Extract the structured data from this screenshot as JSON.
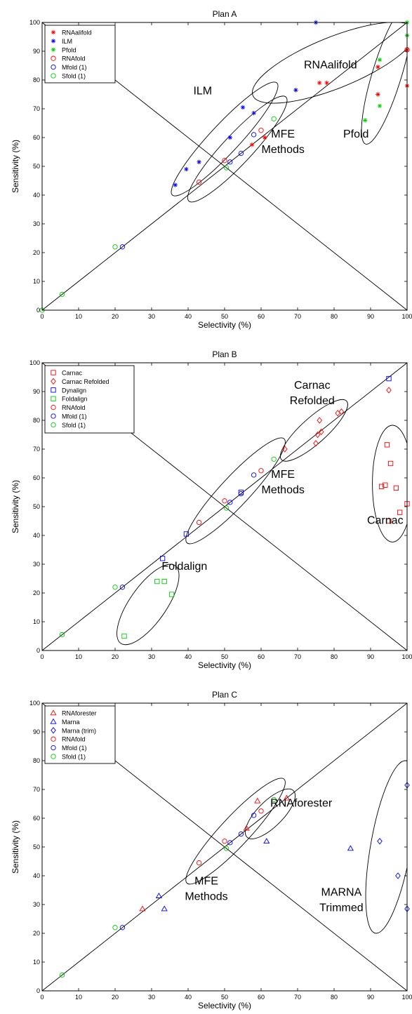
{
  "colors": {
    "red": "#ff0000",
    "blue": "#0000ff",
    "green": "#00cc00",
    "black": "#000000"
  },
  "charts": [
    {
      "type": "scatter",
      "title": "Plan A",
      "xlabel": "Selectivity (%)",
      "ylabel": "Sensitivity (%)",
      "xlim": [
        0,
        100
      ],
      "ylim": [
        0,
        100
      ],
      "ticks": [
        "0",
        "10",
        "20",
        "30",
        "40",
        "50",
        "60",
        "70",
        "80",
        "90",
        "100"
      ],
      "legend": {
        "position": "top-left",
        "entries": [
          {
            "name": "RNAalifold",
            "color": "red",
            "marker": "asterisk"
          },
          {
            "name": "ILM",
            "color": "blue",
            "marker": "asterisk"
          },
          {
            "name": "Pfold",
            "color": "green",
            "marker": "asterisk"
          },
          {
            "name": "RNAfold",
            "color": "red",
            "marker": "circle"
          },
          {
            "name": "Mfold (1)",
            "color": "blue",
            "marker": "circle"
          },
          {
            "name": "Sfold (1)",
            "color": "green",
            "marker": "circle"
          }
        ]
      },
      "series": [
        {
          "name": "RNAalifold",
          "color": "red",
          "marker": "asterisk",
          "points": [
            [
              57.5,
              57.5
            ],
            [
              61,
              60
            ],
            [
              76,
              79
            ],
            [
              78,
              79
            ],
            [
              92,
              75
            ],
            [
              92,
              84.5
            ],
            [
              100,
              78
            ],
            [
              100,
              90.5
            ]
          ]
        },
        {
          "name": "ILM",
          "color": "blue",
          "marker": "asterisk",
          "points": [
            [
              36.5,
              43.5
            ],
            [
              39.5,
              49
            ],
            [
              43,
              51.5
            ],
            [
              51.5,
              60
            ],
            [
              55,
              70.5
            ],
            [
              58,
              68.5
            ],
            [
              69.5,
              76.5
            ],
            [
              75,
              100
            ]
          ]
        },
        {
          "name": "Pfold",
          "color": "green",
          "marker": "asterisk",
          "points": [
            [
              88.5,
              66
            ],
            [
              92.5,
              71
            ],
            [
              92.5,
              87
            ],
            [
              100,
              95.5
            ],
            [
              100,
              100
            ]
          ]
        },
        {
          "name": "RNAfold",
          "color": "red",
          "marker": "circle",
          "points": [
            [
              43,
              44.5
            ],
            [
              50,
              52
            ],
            [
              60,
              62.5
            ],
            [
              100,
              90.5
            ]
          ]
        },
        {
          "name": "Mfold (1)",
          "color": "blue",
          "marker": "circle",
          "points": [
            [
              22,
              22
            ],
            [
              51.5,
              51.5
            ],
            [
              54.5,
              54.5
            ],
            [
              58,
              61
            ]
          ]
        },
        {
          "name": "Sfold (1)",
          "color": "green",
          "marker": "circle",
          "points": [
            [
              0,
              0
            ],
            [
              5.5,
              5.5
            ],
            [
              20,
              22
            ],
            [
              50.5,
              49.5
            ],
            [
              63.5,
              66.5
            ]
          ]
        }
      ],
      "annotations": [
        {
          "lines": [
            "RNAalifold"
          ],
          "at": [
            79,
            84
          ]
        },
        {
          "lines": [
            "ILM"
          ],
          "at": [
            44,
            75
          ]
        },
        {
          "lines": [
            "Pfold"
          ],
          "at": [
            86,
            60
          ]
        },
        {
          "lines": [
            "MFE",
            "Methods"
          ],
          "at": [
            66,
            60
          ]
        }
      ],
      "enclosures": [
        {
          "cx": 50,
          "cy": 59.5,
          "rx": 21,
          "ry": 4,
          "angle": 47
        },
        {
          "cx": 53.5,
          "cy": 56,
          "rx": 19.5,
          "ry": 4,
          "angle": 47
        },
        {
          "cx": 80,
          "cy": 86,
          "rx": 24,
          "ry": 7,
          "angle": 22
        },
        {
          "cx": 94.5,
          "cy": 82,
          "rx": 20,
          "ry": 4,
          "angle": 73
        }
      ]
    },
    {
      "type": "scatter",
      "title": "Plan B",
      "xlabel": "Selectivity (%)",
      "ylabel": "Sensitivity (%)",
      "xlim": [
        0,
        100
      ],
      "ylim": [
        0,
        100
      ],
      "ticks": [
        "0",
        "10",
        "20",
        "30",
        "40",
        "50",
        "60",
        "70",
        "80",
        "90",
        "100"
      ],
      "legend": {
        "position": "top-left",
        "entries": [
          {
            "name": "Carnac",
            "color": "red",
            "marker": "square"
          },
          {
            "name": "Carnac Refolded",
            "color": "red",
            "marker": "diamond"
          },
          {
            "name": "Dynalign",
            "color": "blue",
            "marker": "square"
          },
          {
            "name": "Foldalign",
            "color": "green",
            "marker": "square"
          },
          {
            "name": "RNAfold",
            "color": "red",
            "marker": "circle"
          },
          {
            "name": "Mfold (1)",
            "color": "blue",
            "marker": "circle"
          },
          {
            "name": "Sfold (1)",
            "color": "green",
            "marker": "circle"
          }
        ]
      },
      "series": [
        {
          "name": "Carnac",
          "color": "red",
          "marker": "square",
          "points": [
            [
              93,
              57
            ],
            [
              94,
              57.5
            ],
            [
              94.5,
              71.5
            ],
            [
              95,
              45
            ],
            [
              95.5,
              65
            ],
            [
              97,
              56.5
            ],
            [
              98,
              48
            ],
            [
              100,
              51
            ]
          ]
        },
        {
          "name": "Carnac Refolded",
          "color": "red",
          "marker": "diamond",
          "points": [
            [
              66.5,
              70
            ],
            [
              75,
              72
            ],
            [
              75.5,
              75
            ],
            [
              76,
              80
            ],
            [
              76.5,
              76
            ],
            [
              81,
              82.5
            ],
            [
              82,
              83
            ],
            [
              95,
              90.5
            ]
          ]
        },
        {
          "name": "Dynalign",
          "color": "blue",
          "marker": "square",
          "points": [
            [
              33,
              32
            ],
            [
              39.5,
              40.5
            ],
            [
              54.5,
              55
            ],
            [
              95,
              94.5
            ]
          ]
        },
        {
          "name": "Foldalign",
          "color": "green",
          "marker": "square",
          "points": [
            [
              22.5,
              5
            ],
            [
              31.5,
              24
            ],
            [
              33.5,
              24
            ],
            [
              35.5,
              19.5
            ]
          ]
        },
        {
          "name": "RNAfold",
          "color": "red",
          "marker": "circle",
          "points": [
            [
              43,
              44.5
            ],
            [
              50,
              52
            ],
            [
              60,
              62.5
            ]
          ]
        },
        {
          "name": "Mfold (1)",
          "color": "blue",
          "marker": "circle",
          "points": [
            [
              22,
              22
            ],
            [
              51.5,
              51.5
            ],
            [
              54.5,
              54.5
            ],
            [
              58,
              61
            ]
          ]
        },
        {
          "name": "Sfold (1)",
          "color": "green",
          "marker": "circle",
          "points": [
            [
              5.5,
              5.5
            ],
            [
              20,
              22
            ],
            [
              50.5,
              49.5
            ],
            [
              63.5,
              66.5
            ]
          ]
        }
      ],
      "annotations": [
        {
          "lines": [
            "Carnac",
            "Refolded"
          ],
          "at": [
            74,
            91
          ]
        },
        {
          "lines": [
            "MFE",
            "Methods"
          ],
          "at": [
            66,
            60
          ]
        },
        {
          "lines": [
            "Carnac"
          ],
          "at": [
            94,
            44
          ]
        },
        {
          "lines": [
            "Foldalign"
          ],
          "at": [
            39,
            28
          ]
        }
      ],
      "enclosures": [
        {
          "cx": 53,
          "cy": 55.5,
          "rx": 19.5,
          "ry": 4,
          "angle": 47
        },
        {
          "cx": 74.5,
          "cy": 76.5,
          "rx": 12,
          "ry": 3.5,
          "angle": 42
        },
        {
          "cx": 96,
          "cy": 58,
          "rx": 16,
          "ry": 5.5,
          "angle": 90
        },
        {
          "cx": 29,
          "cy": 16,
          "rx": 13,
          "ry": 5,
          "angle": 55
        }
      ]
    },
    {
      "type": "scatter",
      "title": "Plan C",
      "xlabel": "Selectivity (%)",
      "ylabel": "Sensitivity (%)",
      "xlim": [
        0,
        100
      ],
      "ylim": [
        0,
        100
      ],
      "ticks": [
        "0",
        "10",
        "20",
        "30",
        "40",
        "50",
        "60",
        "70",
        "80",
        "90",
        "100"
      ],
      "legend": {
        "position": "top-left",
        "entries": [
          {
            "name": "RNAforester",
            "color": "red",
            "marker": "triangle"
          },
          {
            "name": "Marna",
            "color": "blue",
            "marker": "triangle"
          },
          {
            "name": "Marna (trim)",
            "color": "blue",
            "marker": "diamond"
          },
          {
            "name": "RNAfold",
            "color": "red",
            "marker": "circle"
          },
          {
            "name": "Mfold (1)",
            "color": "blue",
            "marker": "circle"
          },
          {
            "name": "Sfold (1)",
            "color": "green",
            "marker": "circle"
          }
        ]
      },
      "series": [
        {
          "name": "RNAforester",
          "color": "red",
          "marker": "triangle",
          "points": [
            [
              27.5,
              28.5
            ],
            [
              56,
              56.5
            ],
            [
              59,
              66
            ],
            [
              67,
              67
            ]
          ]
        },
        {
          "name": "Marna",
          "color": "blue",
          "marker": "triangle",
          "points": [
            [
              32,
              33
            ],
            [
              33.5,
              28.5
            ],
            [
              61.5,
              52
            ],
            [
              84.5,
              49.5
            ]
          ]
        },
        {
          "name": "Marna (trim)",
          "color": "blue",
          "marker": "diamond",
          "points": [
            [
              92.5,
              52
            ],
            [
              97.5,
              40
            ],
            [
              100,
              71.5
            ],
            [
              100,
              28.5
            ]
          ]
        },
        {
          "name": "RNAfold",
          "color": "red",
          "marker": "circle",
          "points": [
            [
              43,
              44.5
            ],
            [
              50,
              52
            ],
            [
              60,
              62.5
            ]
          ]
        },
        {
          "name": "Mfold (1)",
          "color": "blue",
          "marker": "circle",
          "points": [
            [
              22,
              22
            ],
            [
              51.5,
              51.5
            ],
            [
              54.5,
              54.5
            ],
            [
              58,
              61
            ]
          ]
        },
        {
          "name": "Sfold (1)",
          "color": "green",
          "marker": "circle",
          "points": [
            [
              5.5,
              5.5
            ],
            [
              20,
              22
            ],
            [
              50.5,
              49.5
            ],
            [
              63.5,
              66.5
            ]
          ]
        }
      ],
      "annotations": [
        {
          "lines": [
            "RNAforester"
          ],
          "at": [
            71,
            64
          ]
        },
        {
          "lines": [
            "MFE",
            "Methods"
          ],
          "at": [
            45,
            37
          ]
        },
        {
          "lines": [
            "MARNA",
            "Trimmed"
          ],
          "at": [
            82,
            33
          ]
        }
      ],
      "enclosures": [
        {
          "cx": 53,
          "cy": 55.5,
          "rx": 19.5,
          "ry": 4,
          "angle": 47
        },
        {
          "cx": 62.5,
          "cy": 61.5,
          "rx": 9,
          "ry": 3.5,
          "angle": 45
        },
        {
          "cx": 95.5,
          "cy": 50,
          "rx": 24,
          "ry": 5.5,
          "angle": 80
        }
      ]
    }
  ]
}
